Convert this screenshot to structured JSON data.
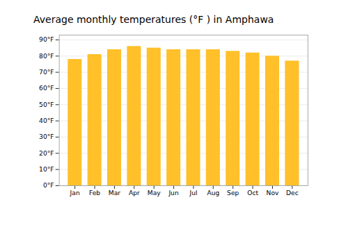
{
  "chart_data": {
    "type": "bar",
    "title": "Average monthly temperatures (°F ) in Amphawa",
    "categories": [
      "Jan",
      "Feb",
      "Mar",
      "Apr",
      "May",
      "Jun",
      "Jul",
      "Aug",
      "Sep",
      "Oct",
      "Nov",
      "Dec"
    ],
    "values": [
      78,
      81,
      84,
      86,
      85,
      84,
      84,
      84,
      83,
      82,
      80,
      77
    ],
    "color": "#FFC02A",
    "ylim": [
      0,
      93
    ],
    "yticks": [
      {
        "value": 0,
        "label": "0°F"
      },
      {
        "value": 10,
        "label": "10°F"
      },
      {
        "value": 20,
        "label": "20°F"
      },
      {
        "value": 30,
        "label": "30°F"
      },
      {
        "value": 40,
        "label": "40°F"
      },
      {
        "value": 50,
        "label": "50°F"
      },
      {
        "value": 60,
        "label": "60°F"
      },
      {
        "value": 70,
        "label": "70°F"
      },
      {
        "value": 80,
        "label": "80°F"
      },
      {
        "value": 90,
        "label": "90°F"
      }
    ],
    "grid": true
  }
}
